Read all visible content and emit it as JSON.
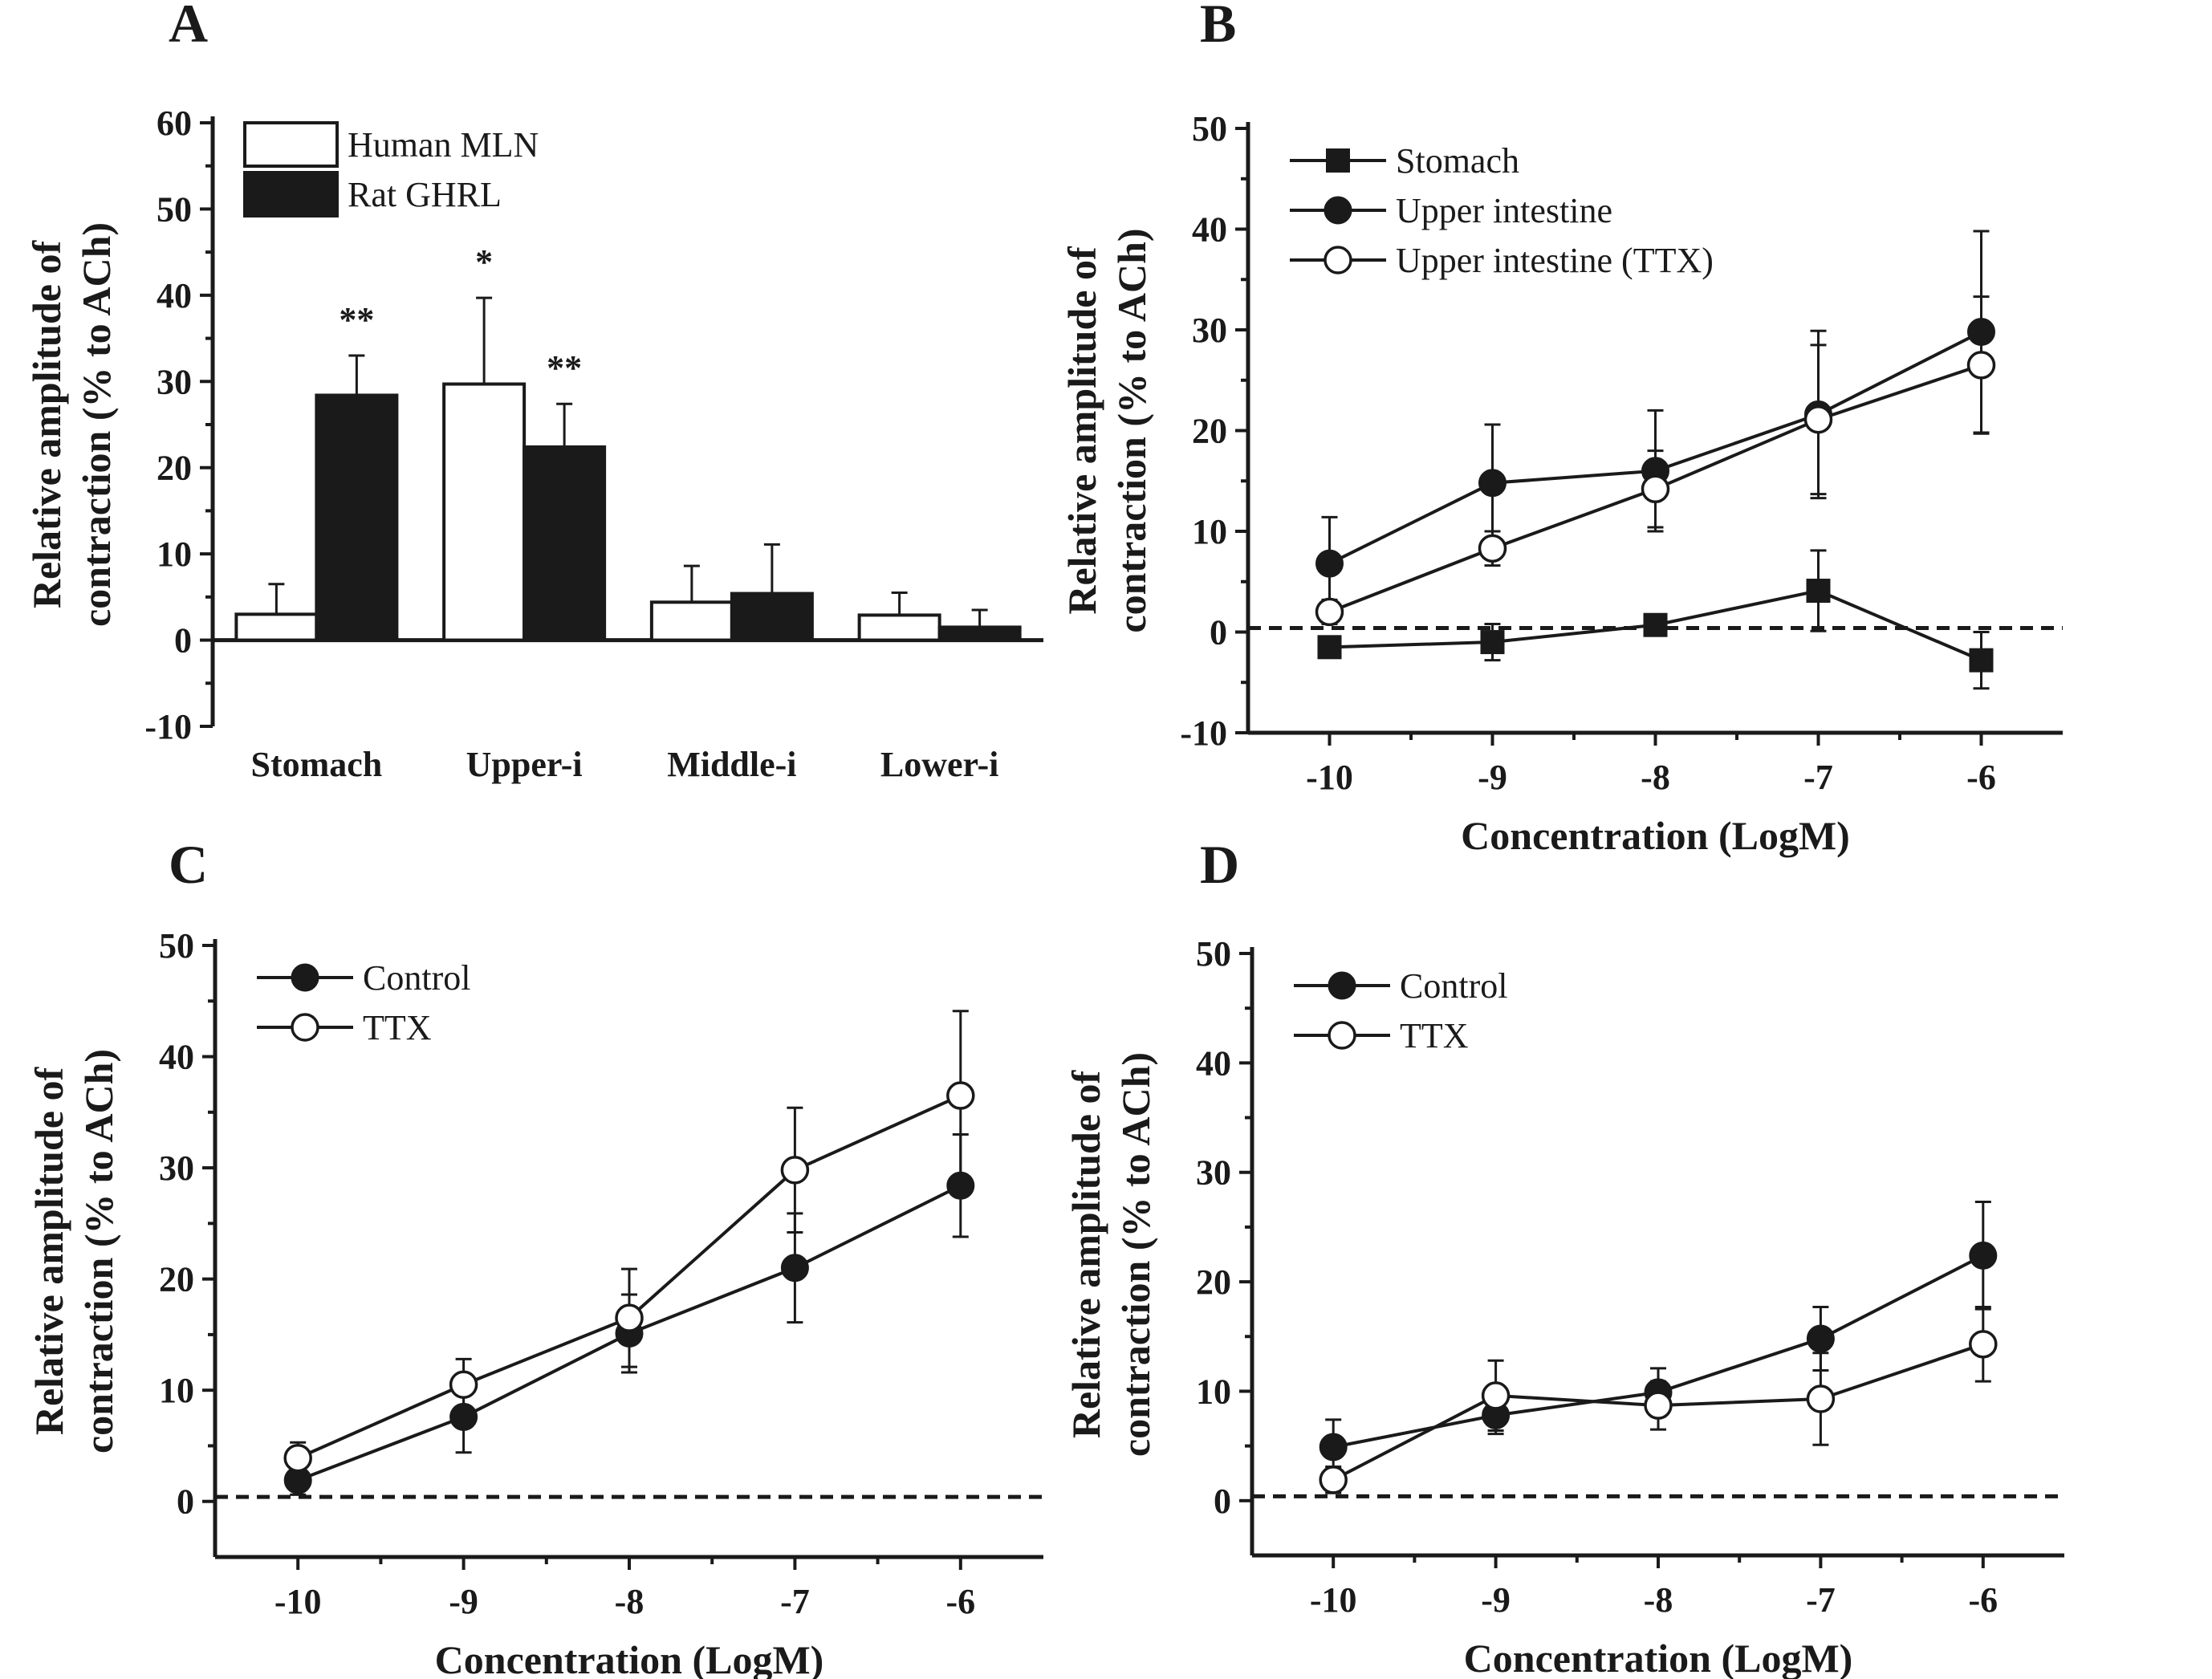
{
  "chart_data": [
    {
      "panel": "A",
      "type": "bar",
      "title": "",
      "xlabel": "",
      "ylabel": [
        "Relative amplitude of",
        "contraction (% to ACh)"
      ],
      "ylim": [
        -10,
        60
      ],
      "yticks": [
        "-10",
        "0",
        "10",
        "20",
        "30",
        "40",
        "50",
        "60"
      ],
      "categories": [
        "Stomach",
        "Upper-i",
        "Middle-i",
        "Lower-i"
      ],
      "legend_position": "top-left",
      "series": [
        {
          "name": "Human MLN",
          "fill": "#ffffff",
          "values": [
            3,
            29.7,
            4.4,
            2.9
          ],
          "errors": [
            3.5,
            10,
            4.2,
            2.6
          ]
        },
        {
          "name": "Rat GHRL",
          "fill": "#1a1a1a",
          "values": [
            28.4,
            22.4,
            5.4,
            1.5
          ],
          "errors": [
            4.6,
            5,
            5.7,
            2
          ]
        }
      ],
      "annotations": [
        {
          "text": "**",
          "category": 0,
          "series": 1
        },
        {
          "text": "*",
          "category": 1,
          "series": 0
        },
        {
          "text": "**",
          "category": 1,
          "series": 1
        }
      ]
    },
    {
      "panel": "B",
      "type": "line",
      "title": "",
      "xlabel": "Concentration (LogM)",
      "ylabel": [
        "Relative amplitude of",
        "contraction (% to ACh)"
      ],
      "ylim": [
        -10,
        50
      ],
      "xlim": [
        -10.5,
        -5.5
      ],
      "yticks": [
        "-10",
        "0",
        "10",
        "20",
        "30",
        "40",
        "50"
      ],
      "xticks": [
        "-10",
        "-9",
        "-8",
        "-7",
        "-6"
      ],
      "x": [
        -10,
        -9,
        -8,
        -7,
        -6
      ],
      "legend_position": "top-left",
      "series": [
        {
          "name": "Stomach",
          "marker": "square-filled",
          "values": [
            -1.5,
            -1,
            0.7,
            4.1,
            -2.8
          ],
          "errors": [
            0.5,
            1.8,
            1,
            4,
            2.8
          ]
        },
        {
          "name": "Upper intestine",
          "marker": "circle-filled",
          "values": [
            6.8,
            14.8,
            16,
            21.6,
            29.8
          ],
          "errors": [
            4.6,
            5.8,
            6,
            8.3,
            10
          ]
        },
        {
          "name": "Upper intestine (TTX)",
          "marker": "circle-open",
          "values": [
            2,
            8.3,
            14.2,
            21.1,
            26.5
          ],
          "errors": [
            1.2,
            1.7,
            3.8,
            7.4,
            6.8
          ]
        }
      ]
    },
    {
      "panel": "C",
      "type": "line",
      "title": "",
      "xlabel": "Concentration (LogM)",
      "ylabel": [
        "Relative amplitude of",
        "contraction (% to ACh)"
      ],
      "ylim": [
        -5,
        50
      ],
      "xlim": [
        -10.5,
        -5.5
      ],
      "yticks": [
        "0",
        "10",
        "20",
        "30",
        "40",
        "50"
      ],
      "xticks": [
        "-10",
        "-9",
        "-8",
        "-7",
        "-6"
      ],
      "x": [
        -10,
        -9,
        -8,
        -7,
        -6
      ],
      "legend_position": "top-left",
      "series": [
        {
          "name": "Control",
          "marker": "circle-filled",
          "values": [
            1.9,
            7.6,
            15.1,
            21,
            28.4
          ],
          "errors": [
            1.3,
            3.2,
            3.5,
            4.9,
            4.6
          ]
        },
        {
          "name": "TTX",
          "marker": "circle-open",
          "values": [
            3.9,
            10.5,
            16.5,
            29.8,
            36.5
          ],
          "errors": [
            1.4,
            2.3,
            4.4,
            5.6,
            7.6
          ]
        }
      ]
    },
    {
      "panel": "D",
      "type": "line",
      "title": "",
      "xlabel": "Concentration (LogM)",
      "ylabel": [
        "Relative amplitude of",
        "contraction (% to ACh)"
      ],
      "ylim": [
        -5,
        50
      ],
      "xlim": [
        -10.5,
        -5.5
      ],
      "yticks": [
        "0",
        "10",
        "20",
        "30",
        "40",
        "50"
      ],
      "xticks": [
        "-10",
        "-9",
        "-8",
        "-7",
        "-6"
      ],
      "x": [
        -10,
        -9,
        -8,
        -7,
        -6
      ],
      "legend_position": "top-left",
      "series": [
        {
          "name": "Control",
          "marker": "circle-filled",
          "values": [
            4.9,
            7.8,
            9.9,
            14.8,
            22.4
          ],
          "errors": [
            2.5,
            1.7,
            2.2,
            2.9,
            4.9
          ]
        },
        {
          "name": "TTX",
          "marker": "circle-open",
          "values": [
            1.9,
            9.6,
            8.7,
            9.3,
            14.3
          ],
          "errors": [
            1.2,
            3.2,
            2.2,
            4.2,
            3.4
          ]
        }
      ]
    }
  ]
}
